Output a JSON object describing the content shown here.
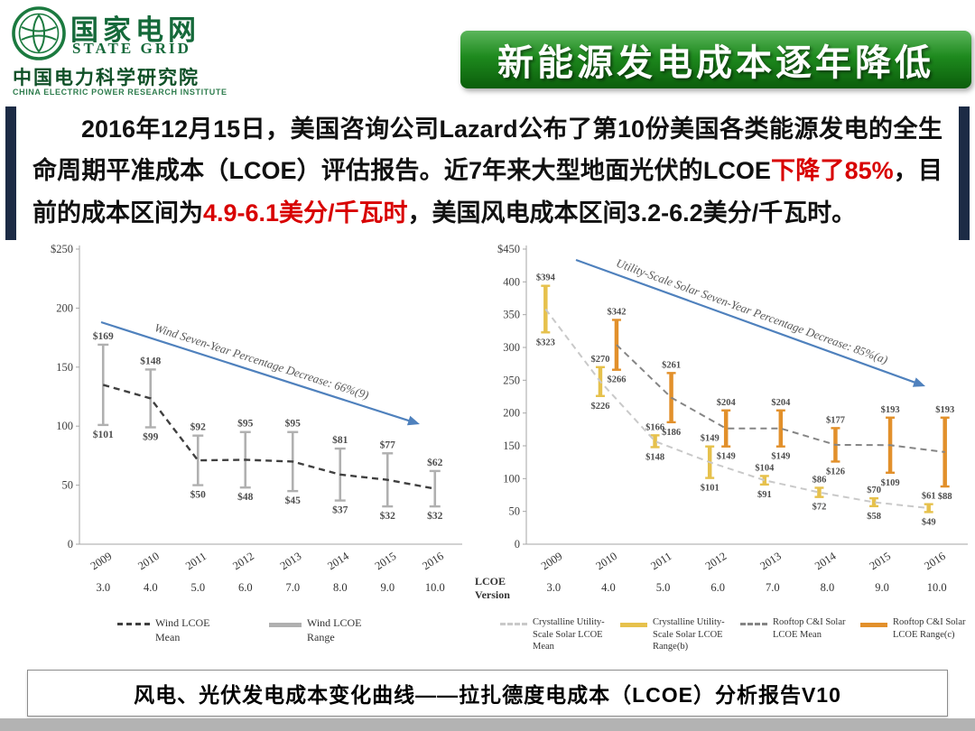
{
  "header": {
    "org_name_cn": "国家电网",
    "org_name_en": "STATE GRID",
    "institute_cn": "中国电力科学研究院",
    "institute_en": "CHINA ELECTRIC POWER RESEARCH INSTITUTE",
    "title": "新能源发电成本逐年降低"
  },
  "intro": {
    "segments": [
      {
        "text": "2016年12月15日，美国咨询公司Lazard公布了第10份美国各类能源发电的全生命周期平准成本（LCOE）评估报告。近7年来大型地面光伏的LCOE",
        "highlight": false
      },
      {
        "text": "下降了85%",
        "highlight": true
      },
      {
        "text": "，目前的成本区间为",
        "highlight": false
      },
      {
        "text": "4.9-6.1美分/千瓦时",
        "highlight": true
      },
      {
        "text": "，美国风电成本区间3.2-6.2美分/千瓦时。",
        "highlight": false
      }
    ]
  },
  "caption": "风电、光伏发电成本变化曲线——拉扎德度电成本（LCOE）分析报告V10",
  "colors": {
    "title_green": "#1e8a1e",
    "highlight_red": "#d80000",
    "accent_navy": "#1c2b45"
  },
  "chart_data": [
    {
      "type": "line",
      "name": "wind-lcoe",
      "title": "",
      "annotation": "Wind Seven-Year Percentage Decrease: 66%(9)",
      "arrow_color": "#4f81bd",
      "categories": [
        "2009",
        "2010",
        "2011",
        "2012",
        "2013",
        "2014",
        "2015",
        "2016"
      ],
      "lcoe_versions": [
        "3.0",
        "4.0",
        "5.0",
        "6.0",
        "7.0",
        "8.0",
        "9.0",
        "10.0"
      ],
      "ylim": [
        0,
        250
      ],
      "ytick_values": [
        0,
        50,
        100,
        150,
        200,
        250
      ],
      "ytick_labels": [
        "0",
        "50",
        "100",
        "150",
        "200",
        "$250"
      ],
      "series": [
        {
          "name": "Wind LCOE Range",
          "kind": "range",
          "color": "#b0b0b0",
          "offset": 0,
          "high": [
            169,
            148,
            92,
            95,
            95,
            81,
            77,
            62
          ],
          "low": [
            101,
            99,
            50,
            48,
            45,
            37,
            32,
            32
          ]
        },
        {
          "name": "Wind LCOE Mean",
          "kind": "mean",
          "color": "#3f3f3f",
          "offset": 0,
          "values": [
            135,
            123.5,
            71,
            71.5,
            70,
            59,
            54.5,
            47
          ]
        }
      ]
    },
    {
      "type": "line",
      "name": "utility-scale-solar-lcoe",
      "title": "",
      "annotation": "Utility-Scale Solar Seven-Year Percentage Decrease: 85%(a)",
      "arrow_color": "#4f81bd",
      "categories": [
        "2009",
        "2010",
        "2011",
        "2012",
        "2013",
        "2014",
        "2015",
        "2016"
      ],
      "lcoe_versions": [
        "3.0",
        "4.0",
        "5.0",
        "6.0",
        "7.0",
        "8.0",
        "9.0",
        "10.0"
      ],
      "lcoe_version_label": "LCOE Version",
      "ylim": [
        0,
        450
      ],
      "ytick_values": [
        0,
        50,
        100,
        150,
        200,
        250,
        300,
        350,
        400,
        450
      ],
      "ytick_labels": [
        "0",
        "50",
        "100",
        "150",
        "200",
        "250",
        "300",
        "350",
        "400",
        "$450"
      ],
      "series": [
        {
          "name": "Crystalline Utility-Scale Solar LCOE Range(b)",
          "kind": "range",
          "color": "#e6c14c",
          "offset": -9,
          "high": [
            394,
            270,
            166,
            149,
            104,
            86,
            70,
            61
          ],
          "low": [
            323,
            226,
            148,
            101,
            91,
            72,
            58,
            49
          ]
        },
        {
          "name": "Crystalline Utility-Scale Solar LCOE Mean",
          "kind": "mean",
          "color": "#c9c9c9",
          "offset": -9,
          "values": [
            358.5,
            248,
            157,
            125,
            97.5,
            79,
            64,
            55
          ]
        },
        {
          "name": "Rooftop C&I Solar LCOE Range(c)",
          "kind": "range",
          "color": "#e2902b",
          "offset": 9,
          "high": [
            null,
            342,
            261,
            204,
            204,
            177,
            193,
            193
          ],
          "low": [
            null,
            266,
            186,
            149,
            149,
            126,
            109,
            88
          ]
        },
        {
          "name": "Rooftop C&I Solar LCOE Mean",
          "kind": "mean",
          "color": "#858585",
          "offset": 9,
          "values": [
            null,
            304,
            223.5,
            176.5,
            176.5,
            151.5,
            151,
            140.5
          ]
        }
      ]
    }
  ]
}
